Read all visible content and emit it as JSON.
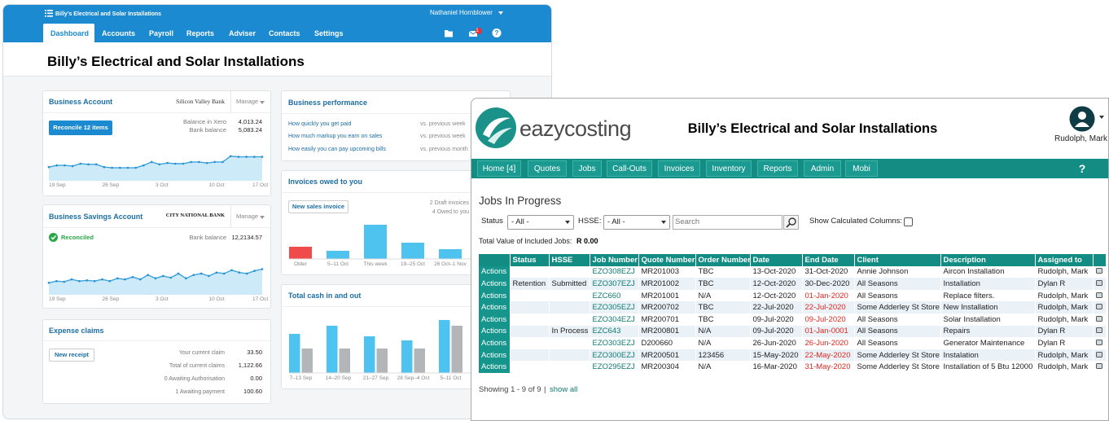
{
  "xero": {
    "org_small": "Billy’s Electrical and Solar Installations",
    "user": "Nathaniel Hornblower",
    "nav": [
      "Dashboard",
      "Accounts",
      "Payroll",
      "Reports",
      "Adviser",
      "Contacts",
      "Settings"
    ],
    "mail_badge": "1",
    "title": "Billy’s Electrical and Solar Installations",
    "business_account": {
      "title": "Business Account",
      "bank": "Silicon Valley Bank",
      "manage": "Manage",
      "button": "Reconcile 12 items",
      "rows": [
        [
          "Balance in Xero",
          "4,013.24"
        ],
        [
          "Bank balance",
          "5,083.24"
        ]
      ],
      "chart": {
        "type": "line",
        "values": [
          40,
          45,
          45,
          43,
          50,
          48,
          48,
          40,
          38,
          38,
          38,
          38,
          45,
          55,
          48,
          52,
          50,
          50,
          55,
          55,
          52,
          55,
          55,
          72,
          70,
          70,
          70,
          70
        ],
        "x_labels": [
          "19 Sep",
          "26 Sep",
          "3 Oct",
          "10 Oct",
          "17 Oct"
        ]
      }
    },
    "savings_account": {
      "title": "Business Savings Account",
      "bank": "CITY NATIONAL BANK",
      "manage": "Manage",
      "status": "Reconciled",
      "rows": [
        [
          "Bank balance",
          "12,2134.57"
        ]
      ],
      "chart": {
        "type": "line",
        "values": [
          35,
          40,
          38,
          45,
          40,
          42,
          40,
          45,
          40,
          48,
          45,
          52,
          45,
          58,
          48,
          55,
          50,
          62,
          48,
          58,
          62,
          55,
          65,
          62,
          72,
          65,
          62,
          70,
          75
        ],
        "x_labels": [
          "19 Sep",
          "26 Sep",
          "3 Oct",
          "10 Oct",
          "17 Oct"
        ]
      }
    },
    "expense_claims": {
      "title": "Expense claims",
      "button": "New receipt",
      "rows": [
        [
          "Your current claim",
          "33.50"
        ],
        [
          "Total of current claims",
          "1,122.66"
        ],
        [
          "0 Awaiting Authorisation",
          "0.00"
        ],
        [
          "1 Awaiting payment",
          "100.60"
        ]
      ]
    },
    "performance": {
      "title": "Business performance",
      "rows": [
        [
          "How quickly you get paid",
          "vs. previous week"
        ],
        [
          "How much markup you earn on sales",
          "vs. previous week"
        ],
        [
          "How easily you can pay upcoming bills",
          "vs. previous month"
        ]
      ]
    },
    "invoices": {
      "title": "Invoices owed to you",
      "button": "New sales invoice",
      "notes": [
        "2 Draft invoices",
        "4 Owed to you"
      ],
      "chart": {
        "type": "bar",
        "categories": [
          "Older",
          "5–11 Oct",
          "This week",
          "19–25 Oct",
          "26 Oct–1 Nov"
        ],
        "values": [
          15,
          10,
          42,
          20,
          12
        ],
        "colors": [
          "#ef4b4b",
          "#4fc3f0",
          "#4fc3f0",
          "#4fc3f0",
          "#4fc3f0"
        ]
      }
    },
    "cash": {
      "title": "Total cash in and out",
      "chart": {
        "type": "bar",
        "categories": [
          "7–13 Sep",
          "14–20 Sep",
          "21–27 Sep",
          "28 Sep–4 Oct",
          "5–11 Oct"
        ],
        "series": [
          {
            "color": "#4fc3f0",
            "values": [
              48,
              58,
              45,
              40,
              65
            ]
          },
          {
            "color": "#b3b6b8",
            "values": [
              30,
              30,
              30,
              30,
              58
            ]
          }
        ]
      }
    }
  },
  "eazy": {
    "logo": "eazycosting",
    "title": "Billy’s Electrical and Solar Installations",
    "user": "Rudolph, Mark",
    "nav": [
      "Home [4]",
      "Quotes",
      "Jobs",
      "Call-Outs",
      "Invoices",
      "Inventory",
      "Reports",
      "Admin",
      "Mobi"
    ],
    "help": "?",
    "heading": "Jobs In Progress",
    "filters": {
      "status_label": "Status",
      "status_value": "- All -",
      "hsse_label": "HSSE:",
      "hsse_value": "- All -",
      "search": "Search",
      "calc_label": "Show Calculated Columns:"
    },
    "total_label": "Total Value of Included Jobs:",
    "total_value": "R 0.00",
    "columns": [
      null,
      "Status",
      "HSSE",
      "Job Number",
      "Quote Number",
      "Order Number",
      "Date",
      "End Date",
      "Client",
      "Description",
      "Assigned to",
      null
    ],
    "rows": [
      {
        "cells": [
          "Actions",
          null,
          null,
          "EZO308EZJ",
          "MR201003",
          "TBC",
          "13-Oct-2020",
          "31-Oct-2020",
          "Annie Johnson",
          "Aircon Installation",
          "Rudolph, Mark"
        ],
        "overdue": false
      },
      {
        "cells": [
          "Actions",
          "Retention",
          "Submitted",
          "EZO307EZJ",
          "MR201002",
          "TBC",
          "12-Oct-2020",
          "30-Dec-2020",
          "All Seasons",
          "Installation",
          "Dylan R"
        ],
        "overdue": false
      },
      {
        "cells": [
          "Actions",
          null,
          null,
          "EZC660",
          "MR201001",
          "N/A",
          "12-Oct-2020",
          "01-Jan-2020",
          "All Seasons",
          "Replace filters.",
          "Rudolph, Mark"
        ],
        "overdue": true
      },
      {
        "cells": [
          "Actions",
          null,
          null,
          "EZO305EZJ",
          "MR200702",
          "TBC",
          "22-Jul-2020",
          "22-Jul-2020",
          "Some Adderley St Store",
          "New Installation",
          "Rudolph, Mark"
        ],
        "overdue": true
      },
      {
        "cells": [
          "Actions",
          null,
          null,
          "EZO304EZJ",
          "MR200701",
          "TBC",
          "09-Jul-2020",
          "09-Jul-2020",
          "All Seasons",
          "Solar Installation",
          "Rudolph, Mark"
        ],
        "overdue": true
      },
      {
        "cells": [
          "Actions",
          null,
          "In Process",
          "EZC643",
          "MR200801",
          "N/A",
          "09-Jul-2020",
          "01-Jan-0001",
          "All Seasons",
          "Repairs",
          "Dylan R"
        ],
        "overdue": true
      },
      {
        "cells": [
          "Actions",
          null,
          null,
          "EZO303EZJ",
          "D200660",
          "N/A",
          "26-Jun-2020",
          "26-Jun-2020",
          "All Seasons",
          "Generator Maintenance",
          "Dylan R"
        ],
        "overdue": true
      },
      {
        "cells": [
          "Actions",
          null,
          null,
          "EZO300EZJ",
          "MR200501",
          "123456",
          "15-May-2020",
          "22-May-2020",
          "Some Adderley St Store",
          "Instalation",
          "Rudolph, Mark"
        ],
        "overdue": true
      },
      {
        "cells": [
          "Actions",
          null,
          null,
          "EZO295EZJ",
          "MR200304",
          "N/A",
          "16-Mar-2020",
          "31-May-2020",
          "Some Adderley St Store",
          "Installation of 5 Btu 12000",
          "Rudolph, Mark"
        ],
        "overdue": true
      }
    ],
    "footer": "Showing 1 - 9 of 9",
    "separator": "|",
    "show_all": "show all"
  }
}
